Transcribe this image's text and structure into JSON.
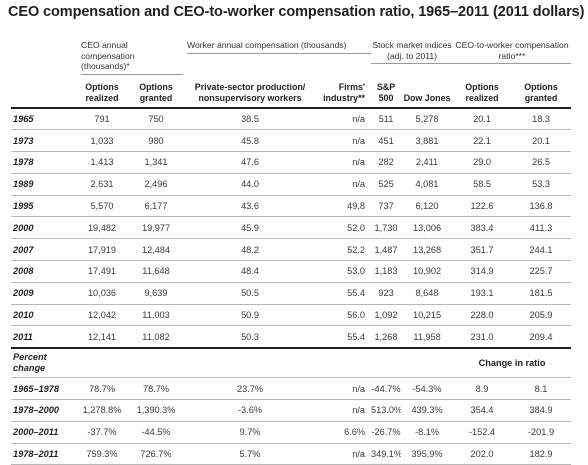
{
  "title": "CEO compensation and CEO-to-worker compensation ratio, 1965–2011 (2011 dollars)",
  "groups": {
    "ceo": "CEO annual compensation (thousands)*",
    "worker": "Worker annual compensation (thousands)",
    "stock": "Stock market indices (adj. to 2011)",
    "ratio": "CEO-to-worker compensation ratio***"
  },
  "columns": {
    "options_realized": "Options realized",
    "options_granted": "Options granted",
    "private_sector": "Private-sector production/ nonsupervisory workers",
    "firms_industry": "Firms' industry**",
    "sp500": "S&P 500",
    "dow": "Dow Jones",
    "ratio_realized": "Options realized",
    "ratio_granted": "Options granted"
  },
  "rows": [
    {
      "year": "1965",
      "or": "791",
      "og": "750",
      "pw": "38.5",
      "fi": "n/a",
      "sp": "511",
      "dj": "5,278",
      "rr": "20.1",
      "rg": "18.3"
    },
    {
      "year": "1973",
      "or": "1,033",
      "og": "980",
      "pw": "45.8",
      "fi": "n/a",
      "sp": "451",
      "dj": "3,881",
      "rr": "22.1",
      "rg": "20.1"
    },
    {
      "year": "1978",
      "or": "1,413",
      "og": "1,341",
      "pw": "47.6",
      "fi": "n/a",
      "sp": "282",
      "dj": "2,411",
      "rr": "29.0",
      "rg": "26.5"
    },
    {
      "year": "1989",
      "or": "2,631",
      "og": "2,496",
      "pw": "44.0",
      "fi": "n/a",
      "sp": "525",
      "dj": "4,081",
      "rr": "58.5",
      "rg": "53.3"
    },
    {
      "year": "1995",
      "or": "5,570",
      "og": "6,177",
      "pw": "43.6",
      "fi": "49.8",
      "sp": "737",
      "dj": "6,120",
      "rr": "122.6",
      "rg": "136.8"
    },
    {
      "year": "2000",
      "or": "19,482",
      "og": "19,977",
      "pw": "45.9",
      "fi": "52.0",
      "sp": "1,730",
      "dj": "13,006",
      "rr": "383.4",
      "rg": "411.3"
    },
    {
      "year": "2007",
      "or": "17,919",
      "og": "12,484",
      "pw": "48.2",
      "fi": "52.2",
      "sp": "1,487",
      "dj": "13,268",
      "rr": "351.7",
      "rg": "244.1"
    },
    {
      "year": "2008",
      "or": "17,491",
      "og": "11,648",
      "pw": "48.4",
      "fi": "53.0",
      "sp": "1,183",
      "dj": "10,902",
      "rr": "314.9",
      "rg": "225.7"
    },
    {
      "year": "2009",
      "or": "10,036",
      "og": "9,639",
      "pw": "50.5",
      "fi": "55.4",
      "sp": "923",
      "dj": "8,648",
      "rr": "193.1",
      "rg": "181.5"
    },
    {
      "year": "2010",
      "or": "12,042",
      "og": "11,003",
      "pw": "50.9",
      "fi": "56.0",
      "sp": "1,092",
      "dj": "10,215",
      "rr": "228.0",
      "rg": "205.9"
    },
    {
      "year": "2011",
      "or": "12,141",
      "og": "11,082",
      "pw": "50.3",
      "fi": "55.4",
      "sp": "1,268",
      "dj": "11,958",
      "rr": "231.0",
      "rg": "209.4"
    }
  ],
  "percent_change": {
    "label": "Percent change",
    "change_in_ratio": "Change in ratio",
    "rows": [
      {
        "year": "1965–1978",
        "or": "78.7%",
        "og": "78.7%",
        "pw": "23.7%",
        "fi": "n/a",
        "sp": "-44.7%",
        "dj": "-54.3%",
        "rr": "8.9",
        "rg": "8.1"
      },
      {
        "year": "1978–2000",
        "or": "1,278.8%",
        "og": "1,390.3%",
        "pw": "-3.6%",
        "fi": "n/a",
        "sp": "513.0%",
        "dj": "439.3%",
        "rr": "354.4",
        "rg": "384.9"
      },
      {
        "year": "2000–2011",
        "or": "-37.7%",
        "og": "-44.5%",
        "pw": "9.7%",
        "fi": "6.6%",
        "sp": "-26.7%",
        "dj": "-8.1%",
        "rr": "-152.4",
        "rg": "-201.9"
      },
      {
        "year": "1978–2011",
        "or": "759.3%",
        "og": "726.7%",
        "pw": "5.7%",
        "fi": "n/a",
        "sp": "349.1%",
        "dj": "395.9%",
        "rr": "202.0",
        "rg": "182.9"
      }
    ]
  }
}
